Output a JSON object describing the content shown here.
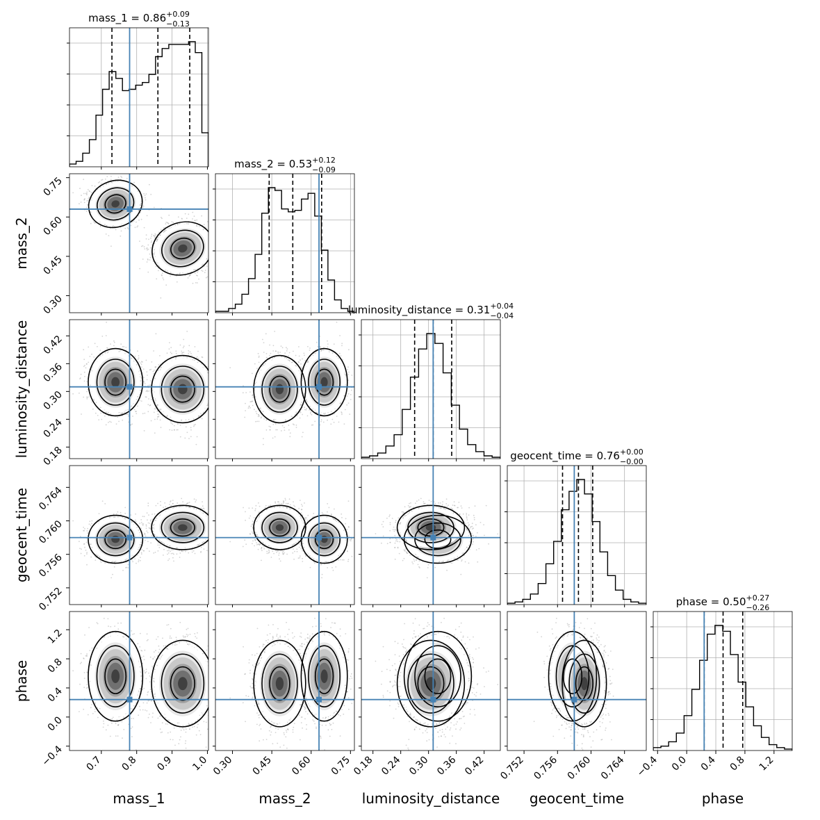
{
  "chart_data": {
    "type": "corner",
    "parameters": [
      {
        "name": "mass_1",
        "label": "mass_1",
        "truth": 0.78,
        "range": [
          0.61,
          1.003
        ],
        "ticks": [
          0.7,
          0.8,
          0.9,
          1.0
        ],
        "tick_labels": [
          "0.7",
          "0.8",
          "0.9",
          "1.0"
        ],
        "median": 0.86,
        "plus": 0.09,
        "minus": 0.13,
        "title": {
          "main": "mass_1 = 0.86",
          "sup": "+0.09",
          "sub": "−0.13"
        },
        "quantiles": [
          0.73,
          0.86,
          0.95
        ]
      },
      {
        "name": "mass_2",
        "label": "mass_2",
        "truth": 0.63,
        "range": [
          0.235,
          0.765
        ],
        "ticks": [
          0.3,
          0.45,
          0.6,
          0.75
        ],
        "tick_labels": [
          "0.30",
          "0.45",
          "0.60",
          "0.75"
        ],
        "median": 0.53,
        "plus": 0.12,
        "minus": 0.09,
        "title": {
          "main": "mass_2 = 0.53",
          "sup": "+0.12",
          "sub": "−0.09"
        },
        "quantiles": [
          0.44,
          0.53,
          0.64
        ]
      },
      {
        "name": "luminosity_distance",
        "label": "luminosity_distance",
        "truth": 0.31,
        "range": [
          0.155,
          0.455
        ],
        "ticks": [
          0.18,
          0.24,
          0.3,
          0.36,
          0.42
        ],
        "tick_labels": [
          "0.18",
          "0.24",
          "0.30",
          "0.36",
          "0.42"
        ],
        "median": 0.31,
        "plus": 0.04,
        "minus": 0.04,
        "title": {
          "main": "luminosity_distance = 0.31",
          "sup": "+0.04",
          "sub": "−0.04"
        },
        "quantiles": [
          0.27,
          0.31,
          0.35
        ]
      },
      {
        "name": "geocent_time",
        "label": "geocent_time",
        "truth": 0.758,
        "range": [
          0.75,
          0.7666
        ],
        "ticks": [
          0.752,
          0.756,
          0.76,
          0.764
        ],
        "tick_labels": [
          "0.752",
          "0.756",
          "0.760",
          "0.764"
        ],
        "median": 0.76,
        "plus": 0.0,
        "minus": 0.0,
        "title": {
          "main": "geocent_time = 0.76",
          "sup": "+0.00",
          "sub": "−0.00"
        },
        "quantiles": [
          0.7566,
          0.7585,
          0.7602
        ]
      },
      {
        "name": "phase",
        "label": "phase",
        "truth": 0.24,
        "range": [
          -0.46,
          1.45
        ],
        "ticks": [
          -0.4,
          0.0,
          0.4,
          0.8,
          1.2
        ],
        "tick_labels": [
          "−0.4",
          "0.0",
          "0.4",
          "0.8",
          "1.2"
        ],
        "median": 0.5,
        "plus": 0.27,
        "minus": 0.26,
        "title": {
          "main": "phase = 0.50",
          "sup": "+0.27",
          "sub": "−0.26"
        },
        "quantiles": [
          0.24,
          0.5,
          0.77
        ]
      }
    ],
    "histograms": [
      {
        "param": "mass_1",
        "counts": [
          2,
          4,
          10,
          20,
          38,
          57,
          70,
          65,
          56,
          57,
          60,
          62,
          68,
          81,
          87,
          90,
          90,
          90,
          92,
          84,
          25
        ]
      },
      {
        "param": "mass_2",
        "counts": [
          1,
          1,
          3,
          6,
          13,
          24,
          41,
          70,
          88,
          86,
          73,
          71,
          72,
          80,
          84,
          68,
          44,
          23,
          9,
          3,
          1
        ]
      },
      {
        "param": "luminosity_distance",
        "counts": [
          1,
          2,
          4,
          9,
          17,
          35,
          58,
          78,
          89,
          82,
          61,
          38,
          21,
          10,
          5,
          2,
          1
        ]
      },
      {
        "param": "geocent_time",
        "counts": [
          1,
          2,
          4,
          8,
          16,
          31,
          48,
          72,
          86,
          95,
          84,
          63,
          40,
          22,
          11,
          4,
          2,
          1
        ]
      },
      {
        "param": "phase",
        "counts": [
          2,
          3,
          6,
          12,
          24,
          42,
          62,
          80,
          86,
          82,
          66,
          47,
          30,
          17,
          9,
          4,
          2,
          1
        ]
      }
    ],
    "truth_color": "#4682b4",
    "line_color": "#000000",
    "sample_color": "#9e9e9e",
    "grid": true,
    "axis_labels": [
      "mass_1",
      "mass_2",
      "luminosity_distance",
      "geocent_time",
      "phase"
    ]
  }
}
